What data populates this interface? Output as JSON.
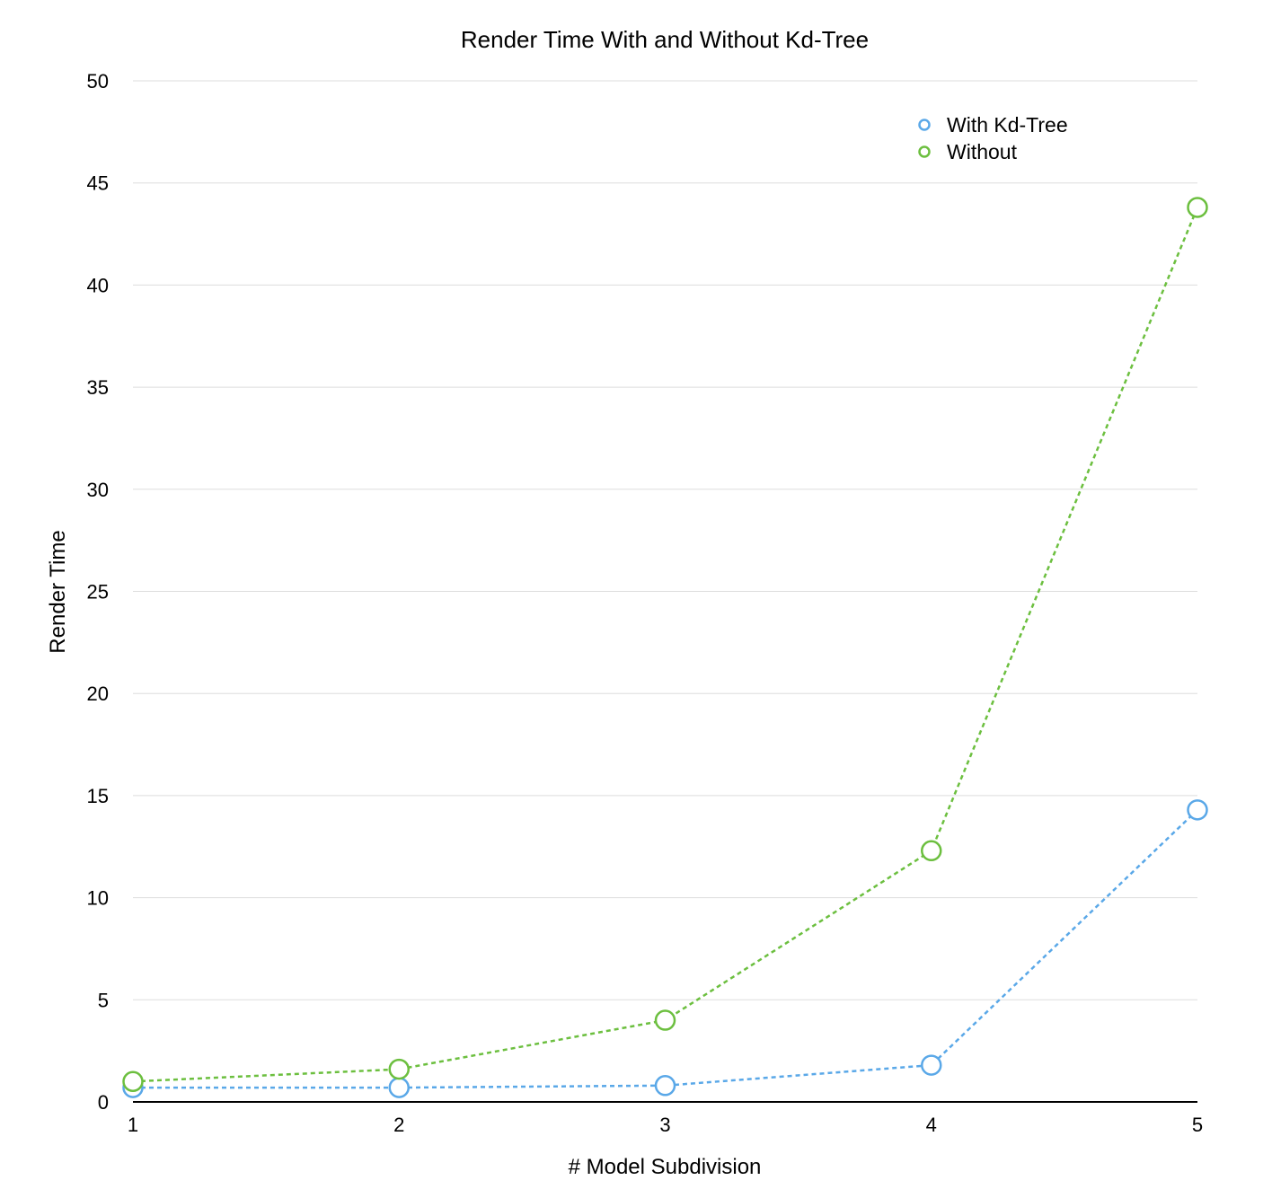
{
  "chart_data": {
    "type": "line",
    "title": "Render Time With and Without Kd-Tree",
    "xlabel": "# Model Subdivision",
    "ylabel": "Render Time",
    "x": [
      1,
      2,
      3,
      4,
      5
    ],
    "x_ticks": [
      "1",
      "2",
      "3",
      "4",
      "5"
    ],
    "ylim": [
      0,
      50
    ],
    "y_ticks": [
      "0",
      "5",
      "10",
      "15",
      "20",
      "25",
      "30",
      "35",
      "40",
      "45",
      "50"
    ],
    "grid": true,
    "legend_position": "top-right",
    "series": [
      {
        "name": "With Kd-Tree",
        "color": "#5aa8e8",
        "values": [
          0.7,
          0.7,
          0.8,
          1.8,
          14.3
        ]
      },
      {
        "name": "Without",
        "color": "#6cbf3f",
        "values": [
          1.0,
          1.6,
          4.0,
          12.3,
          43.8
        ]
      }
    ]
  }
}
